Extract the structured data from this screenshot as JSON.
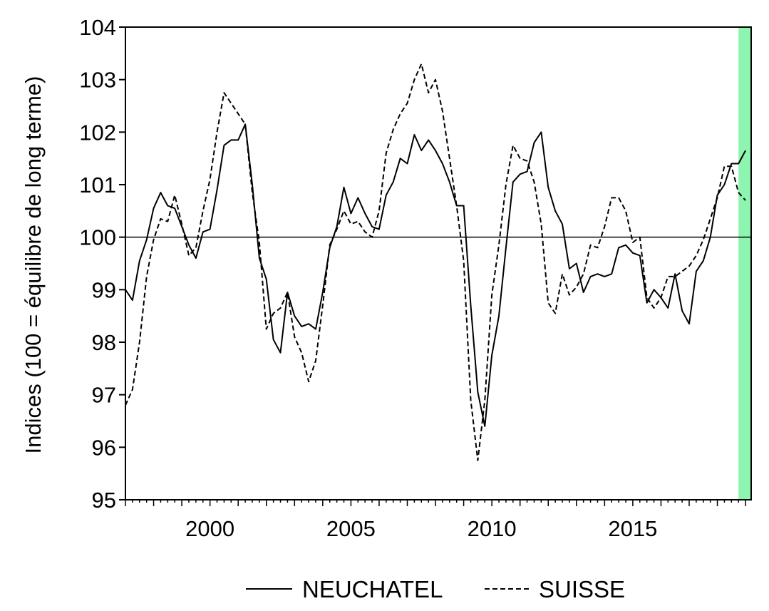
{
  "chart_data": {
    "type": "line",
    "xlabel": "",
    "ylabel": "Indices (100 = équilibre de long terme)",
    "xlim": [
      1997.0,
      2019.2
    ],
    "ylim": [
      95,
      104
    ],
    "x_ticks": [
      2000,
      2005,
      2010,
      2015
    ],
    "y_ticks": [
      95,
      96,
      97,
      98,
      99,
      100,
      101,
      102,
      103,
      104
    ],
    "x_tick_labels": [
      "2000",
      "2005",
      "2010",
      "2015"
    ],
    "y_tick_labels": [
      "95",
      "96",
      "97",
      "98",
      "99",
      "100",
      "101",
      "102",
      "103",
      "104"
    ],
    "reference_line": 100,
    "grid": false,
    "legend_position": "bottom",
    "highlight_band": {
      "x_start": 2018.75,
      "x_end": 2019.2,
      "color": "#8ef5b0"
    },
    "line_color": "#000000",
    "series": [
      {
        "name": "NEUCHATEL",
        "style": "solid",
        "points": [
          [
            1997.0,
            99.0
          ],
          [
            1997.25,
            98.8
          ],
          [
            1997.5,
            99.55
          ],
          [
            1997.75,
            99.95
          ],
          [
            1998.0,
            100.55
          ],
          [
            1998.25,
            100.85
          ],
          [
            1998.5,
            100.6
          ],
          [
            1998.75,
            100.55
          ],
          [
            1999.0,
            100.2
          ],
          [
            1999.25,
            99.85
          ],
          [
            1999.5,
            99.6
          ],
          [
            1999.75,
            100.1
          ],
          [
            2000.0,
            100.15
          ],
          [
            2000.25,
            100.9
          ],
          [
            2000.5,
            101.75
          ],
          [
            2000.75,
            101.85
          ],
          [
            2001.0,
            101.85
          ],
          [
            2001.25,
            102.15
          ],
          [
            2001.5,
            101.0
          ],
          [
            2001.75,
            99.6
          ],
          [
            2002.0,
            99.2
          ],
          [
            2002.25,
            98.05
          ],
          [
            2002.5,
            97.8
          ],
          [
            2002.75,
            98.95
          ],
          [
            2003.0,
            98.5
          ],
          [
            2003.25,
            98.3
          ],
          [
            2003.5,
            98.35
          ],
          [
            2003.75,
            98.25
          ],
          [
            2004.0,
            98.95
          ],
          [
            2004.25,
            99.8
          ],
          [
            2004.5,
            100.2
          ],
          [
            2004.75,
            100.95
          ],
          [
            2005.0,
            100.45
          ],
          [
            2005.25,
            100.75
          ],
          [
            2005.5,
            100.45
          ],
          [
            2005.75,
            100.2
          ],
          [
            2006.0,
            100.15
          ],
          [
            2006.25,
            100.8
          ],
          [
            2006.5,
            101.05
          ],
          [
            2006.75,
            101.5
          ],
          [
            2007.0,
            101.4
          ],
          [
            2007.25,
            101.95
          ],
          [
            2007.5,
            101.65
          ],
          [
            2007.75,
            101.85
          ],
          [
            2008.0,
            101.65
          ],
          [
            2008.25,
            101.4
          ],
          [
            2008.5,
            101.05
          ],
          [
            2008.75,
            100.6
          ],
          [
            2009.0,
            100.6
          ],
          [
            2009.25,
            98.7
          ],
          [
            2009.5,
            97.05
          ],
          [
            2009.75,
            96.4
          ],
          [
            2010.0,
            97.75
          ],
          [
            2010.25,
            98.5
          ],
          [
            2010.5,
            99.8
          ],
          [
            2010.75,
            101.05
          ],
          [
            2011.0,
            101.2
          ],
          [
            2011.25,
            101.25
          ],
          [
            2011.5,
            101.8
          ],
          [
            2011.75,
            102.0
          ],
          [
            2012.0,
            100.95
          ],
          [
            2012.25,
            100.5
          ],
          [
            2012.5,
            100.25
          ],
          [
            2012.75,
            99.4
          ],
          [
            2013.0,
            99.5
          ],
          [
            2013.25,
            98.95
          ],
          [
            2013.5,
            99.25
          ],
          [
            2013.75,
            99.3
          ],
          [
            2014.0,
            99.25
          ],
          [
            2014.25,
            99.3
          ],
          [
            2014.5,
            99.8
          ],
          [
            2014.75,
            99.85
          ],
          [
            2015.0,
            99.7
          ],
          [
            2015.25,
            99.65
          ],
          [
            2015.5,
            98.75
          ],
          [
            2015.75,
            99.0
          ],
          [
            2016.0,
            98.85
          ],
          [
            2016.25,
            98.65
          ],
          [
            2016.5,
            99.3
          ],
          [
            2016.75,
            98.6
          ],
          [
            2017.0,
            98.35
          ],
          [
            2017.25,
            99.35
          ],
          [
            2017.5,
            99.55
          ],
          [
            2017.75,
            100.0
          ],
          [
            2018.0,
            100.8
          ],
          [
            2018.25,
            101.0
          ],
          [
            2018.5,
            101.4
          ],
          [
            2018.75,
            101.4
          ],
          [
            2019.0,
            101.65
          ]
        ]
      },
      {
        "name": "SUISSE",
        "style": "dashed",
        "points": [
          [
            1997.0,
            96.8
          ],
          [
            1997.25,
            97.1
          ],
          [
            1997.5,
            98.0
          ],
          [
            1997.75,
            99.25
          ],
          [
            1998.0,
            99.95
          ],
          [
            1998.25,
            100.35
          ],
          [
            1998.5,
            100.3
          ],
          [
            1998.75,
            100.8
          ],
          [
            1999.0,
            100.25
          ],
          [
            1999.25,
            99.65
          ],
          [
            1999.5,
            99.8
          ],
          [
            1999.75,
            100.5
          ],
          [
            2000.0,
            101.1
          ],
          [
            2000.25,
            102.0
          ],
          [
            2000.5,
            102.75
          ],
          [
            2000.75,
            102.55
          ],
          [
            2001.0,
            102.35
          ],
          [
            2001.25,
            102.15
          ],
          [
            2001.5,
            100.85
          ],
          [
            2001.75,
            99.9
          ],
          [
            2002.0,
            98.25
          ],
          [
            2002.25,
            98.55
          ],
          [
            2002.5,
            98.65
          ],
          [
            2002.75,
            98.95
          ],
          [
            2003.0,
            98.1
          ],
          [
            2003.25,
            97.8
          ],
          [
            2003.5,
            97.25
          ],
          [
            2003.75,
            97.65
          ],
          [
            2004.0,
            98.7
          ],
          [
            2004.25,
            99.85
          ],
          [
            2004.5,
            100.15
          ],
          [
            2004.75,
            100.5
          ],
          [
            2005.0,
            100.25
          ],
          [
            2005.25,
            100.3
          ],
          [
            2005.5,
            100.1
          ],
          [
            2005.75,
            100.0
          ],
          [
            2006.0,
            100.5
          ],
          [
            2006.25,
            101.6
          ],
          [
            2006.5,
            102.05
          ],
          [
            2006.75,
            102.35
          ],
          [
            2007.0,
            102.55
          ],
          [
            2007.25,
            103.0
          ],
          [
            2007.5,
            103.3
          ],
          [
            2007.75,
            102.75
          ],
          [
            2008.0,
            103.0
          ],
          [
            2008.25,
            102.4
          ],
          [
            2008.5,
            101.5
          ],
          [
            2008.75,
            100.6
          ],
          [
            2009.0,
            99.55
          ],
          [
            2009.25,
            96.9
          ],
          [
            2009.5,
            95.75
          ],
          [
            2009.75,
            96.9
          ],
          [
            2010.0,
            98.9
          ],
          [
            2010.25,
            99.85
          ],
          [
            2010.5,
            101.0
          ],
          [
            2010.75,
            101.75
          ],
          [
            2011.0,
            101.5
          ],
          [
            2011.25,
            101.45
          ],
          [
            2011.5,
            101.05
          ],
          [
            2011.75,
            100.25
          ],
          [
            2012.0,
            98.75
          ],
          [
            2012.25,
            98.55
          ],
          [
            2012.5,
            99.3
          ],
          [
            2012.75,
            98.9
          ],
          [
            2013.0,
            99.05
          ],
          [
            2013.25,
            99.3
          ],
          [
            2013.5,
            99.85
          ],
          [
            2013.75,
            99.8
          ],
          [
            2014.0,
            100.2
          ],
          [
            2014.25,
            100.75
          ],
          [
            2014.5,
            100.75
          ],
          [
            2014.75,
            100.5
          ],
          [
            2015.0,
            99.9
          ],
          [
            2015.25,
            100.0
          ],
          [
            2015.5,
            98.85
          ],
          [
            2015.75,
            98.65
          ],
          [
            2016.0,
            98.85
          ],
          [
            2016.25,
            99.25
          ],
          [
            2016.5,
            99.25
          ],
          [
            2016.75,
            99.35
          ],
          [
            2017.0,
            99.45
          ],
          [
            2017.25,
            99.65
          ],
          [
            2017.5,
            99.95
          ],
          [
            2017.75,
            100.35
          ],
          [
            2018.0,
            100.75
          ],
          [
            2018.25,
            101.35
          ],
          [
            2018.5,
            101.35
          ],
          [
            2018.75,
            100.85
          ],
          [
            2019.0,
            100.7
          ]
        ]
      }
    ]
  }
}
